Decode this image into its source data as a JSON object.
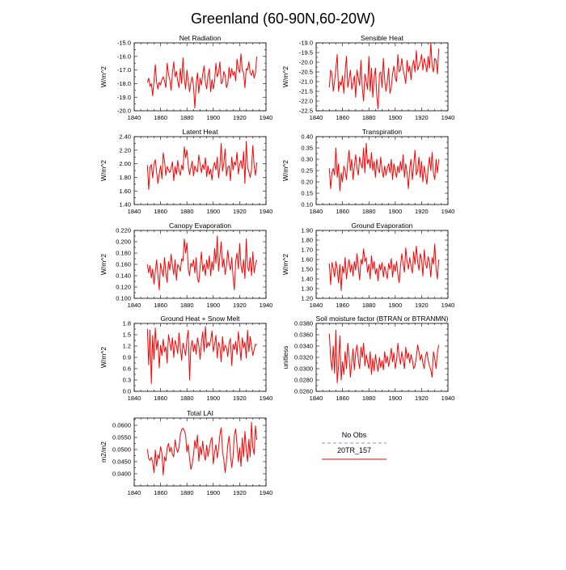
{
  "figure": {
    "title": "Greenland (60-90N,60-20W)"
  },
  "legend": {
    "items": [
      {
        "label": "No Obs",
        "color": "#8a8af0",
        "dashed": true
      },
      {
        "label": "20TR_157",
        "color": "#ff0000",
        "dashed": false
      }
    ]
  },
  "chart_data": [
    {
      "type": "line",
      "title": "Net Radiation",
      "xlabel": "",
      "ylabel": "W/m^2",
      "xlim": [
        1840,
        1940
      ],
      "ylim": [
        -20.0,
        -15.0
      ],
      "xticks": [
        1840,
        1860,
        1880,
        1900,
        1920,
        1940
      ],
      "yticks": [
        -20.0,
        -19.0,
        -18.0,
        -17.0,
        -16.0,
        -15.0
      ],
      "ytick_decimals": 1,
      "series": [
        {
          "color": "#ff0000",
          "x_start": 1850,
          "values": [
            -17.9,
            -17.6,
            -18.2,
            -18.0,
            -18.9,
            -17.8,
            -16.6,
            -17.9,
            -18.4,
            -17.9,
            -18.1,
            -17.7,
            -17.5,
            -17.8,
            -18.3,
            -16.5,
            -17.3,
            -17.7,
            -18.5,
            -17.2,
            -16.4,
            -17.5,
            -17.1,
            -17.8,
            -18.3,
            -16.9,
            -18.0,
            -16.1,
            -17.6,
            -18.4,
            -17.0,
            -17.8,
            -18.6,
            -17.9,
            -17.5,
            -18.2,
            -19.8,
            -18.0,
            -17.2,
            -18.7,
            -17.6,
            -18.1,
            -17.3,
            -16.7,
            -17.9,
            -18.4,
            -17.4,
            -16.9,
            -18.6,
            -17.7,
            -18.4,
            -17.8,
            -16.5,
            -17.5,
            -17.2,
            -16.4,
            -18.0,
            -17.9,
            -17.1,
            -17.4,
            -18.3,
            -18.0,
            -16.8,
            -17.6,
            -16.9,
            -17.4,
            -17.1,
            -17.8,
            -16.2,
            -16.9,
            -17.2,
            -15.8,
            -17.0,
            -17.2,
            -18.3,
            -16.9,
            -17.0,
            -16.4,
            -17.2,
            -17.4,
            -17.0,
            -17.6,
            -17.2,
            -16.0
          ]
        }
      ]
    },
    {
      "type": "line",
      "title": "Sensible Heat",
      "xlabel": "",
      "ylabel": "W/m^2",
      "xlim": [
        1840,
        1940
      ],
      "ylim": [
        -22.5,
        -19.0
      ],
      "xticks": [
        1840,
        1860,
        1880,
        1900,
        1920,
        1940
      ],
      "yticks": [
        -22.5,
        -22.0,
        -21.5,
        -21.0,
        -20.5,
        -20.0,
        -19.5,
        -19.0
      ],
      "ytick_decimals": 1,
      "series": [
        {
          "color": "#ff0000",
          "x_start": 1850,
          "values": [
            -21.3,
            -20.4,
            -20.6,
            -21.5,
            -21.0,
            -20.3,
            -19.6,
            -21.5,
            -21.0,
            -21.2,
            -20.7,
            -21.6,
            -20.5,
            -19.7,
            -21.3,
            -20.9,
            -20.4,
            -21.4,
            -21.1,
            -20.7,
            -21.8,
            -20.4,
            -20.8,
            -21.2,
            -19.9,
            -21.3,
            -22.0,
            -20.6,
            -21.0,
            -21.4,
            -19.7,
            -21.5,
            -20.3,
            -21.8,
            -20.8,
            -20.3,
            -21.7,
            -22.4,
            -20.6,
            -20.5,
            -21.3,
            -19.8,
            -20.9,
            -21.5,
            -21.0,
            -20.3,
            -21.6,
            -21.3,
            -20.6,
            -20.2,
            -20.8,
            -21.0,
            -19.6,
            -20.5,
            -20.4,
            -19.8,
            -20.4,
            -20.7,
            -21.1,
            -19.9,
            -20.5,
            -20.2,
            -20.9,
            -20.2,
            -19.9,
            -20.5,
            -19.4,
            -20.4,
            -20.2,
            -20.0,
            -19.6,
            -20.4,
            -19.8,
            -20.1,
            -20.5,
            -19.7,
            -20.3,
            -19.0,
            -20.2,
            -20.5,
            -19.8,
            -19.9,
            -20.6,
            -19.3
          ]
        }
      ]
    },
    {
      "type": "line",
      "title": "Latent Heat",
      "xlabel": "",
      "ylabel": "W/m^2",
      "xlim": [
        1840,
        1940
      ],
      "ylim": [
        1.4,
        2.4
      ],
      "xticks": [
        1840,
        1860,
        1880,
        1900,
        1920,
        1940
      ],
      "yticks": [
        1.4,
        1.6,
        1.8,
        2.0,
        2.2,
        2.4
      ],
      "ytick_decimals": 2,
      "series": [
        {
          "color": "#ff0000",
          "x_start": 1850,
          "values": [
            1.98,
            1.62,
            1.95,
            1.99,
            1.79,
            2.0,
            2.06,
            1.88,
            1.71,
            1.85,
            1.97,
            1.78,
            2.16,
            2.04,
            1.83,
            1.96,
            1.91,
            1.87,
            1.94,
            2.03,
            1.75,
            1.96,
            1.84,
            2.05,
            1.9,
            1.83,
            1.98,
            1.91,
            2.25,
            2.09,
            2.2,
            1.97,
            1.84,
            1.94,
            2.04,
            1.82,
            1.97,
            1.91,
            1.88,
            2.13,
            2.0,
            1.87,
            1.99,
            1.92,
            2.09,
            1.81,
            1.97,
            1.84,
            1.92,
            1.76,
            1.95,
            2.02,
            1.91,
            2.1,
            1.79,
            1.96,
            2.3,
            1.89,
            2.01,
            2.22,
            1.82,
            1.95,
            1.97,
            1.75,
            2.1,
            1.91,
            2.03,
            1.98,
            2.17,
            1.85,
            1.99,
            2.05,
            1.93,
            2.18,
            1.71,
            2.33,
            1.95,
            1.88,
            1.8,
            1.92,
            2.27,
            1.97,
            1.83,
            2.02
          ]
        }
      ]
    },
    {
      "type": "line",
      "title": "Transpiration",
      "xlabel": "",
      "ylabel": "W/m^2",
      "xlim": [
        1840,
        1940
      ],
      "ylim": [
        0.1,
        0.4
      ],
      "xticks": [
        1840,
        1860,
        1880,
        1900,
        1920,
        1940
      ],
      "yticks": [
        0.1,
        0.15,
        0.2,
        0.25,
        0.3,
        0.35,
        0.4
      ],
      "ytick_decimals": 2,
      "series": [
        {
          "color": "#ff0000",
          "x_start": 1850,
          "values": [
            0.26,
            0.17,
            0.24,
            0.26,
            0.23,
            0.35,
            0.22,
            0.28,
            0.16,
            0.24,
            0.2,
            0.27,
            0.25,
            0.21,
            0.29,
            0.34,
            0.25,
            0.3,
            0.21,
            0.27,
            0.32,
            0.26,
            0.23,
            0.31,
            0.28,
            0.26,
            0.35,
            0.24,
            0.37,
            0.28,
            0.3,
            0.26,
            0.33,
            0.25,
            0.29,
            0.22,
            0.3,
            0.26,
            0.24,
            0.31,
            0.25,
            0.22,
            0.27,
            0.23,
            0.26,
            0.28,
            0.24,
            0.3,
            0.21,
            0.28,
            0.25,
            0.22,
            0.27,
            0.24,
            0.29,
            0.25,
            0.32,
            0.22,
            0.28,
            0.24,
            0.17,
            0.26,
            0.3,
            0.21,
            0.27,
            0.34,
            0.23,
            0.25,
            0.31,
            0.22,
            0.29,
            0.2,
            0.27,
            0.23,
            0.19,
            0.26,
            0.31,
            0.25,
            0.33,
            0.24,
            0.21,
            0.3,
            0.24,
            0.3
          ]
        }
      ]
    },
    {
      "type": "line",
      "title": "Canopy Evaporation",
      "xlabel": "",
      "ylabel": "W/m^2",
      "xlim": [
        1840,
        1940
      ],
      "ylim": [
        0.1,
        0.22
      ],
      "xticks": [
        1840,
        1860,
        1880,
        1900,
        1920,
        1940
      ],
      "yticks": [
        0.1,
        0.12,
        0.14,
        0.16,
        0.18,
        0.2,
        0.22
      ],
      "ytick_decimals": 3,
      "series": [
        {
          "color": "#ff0000",
          "x_start": 1850,
          "values": [
            0.16,
            0.145,
            0.158,
            0.136,
            0.152,
            0.125,
            0.147,
            0.168,
            0.14,
            0.115,
            0.162,
            0.15,
            0.138,
            0.172,
            0.145,
            0.128,
            0.165,
            0.15,
            0.178,
            0.158,
            0.142,
            0.168,
            0.132,
            0.16,
            0.155,
            0.148,
            0.17,
            0.166,
            0.205,
            0.18,
            0.198,
            0.152,
            0.14,
            0.162,
            0.156,
            0.168,
            0.145,
            0.172,
            0.135,
            0.128,
            0.155,
            0.182,
            0.148,
            0.16,
            0.14,
            0.168,
            0.152,
            0.175,
            0.14,
            0.165,
            0.15,
            0.188,
            0.162,
            0.21,
            0.148,
            0.175,
            0.2,
            0.155,
            0.17,
            0.142,
            0.158,
            0.185,
            0.162,
            0.15,
            0.172,
            0.138,
            0.115,
            0.165,
            0.18,
            0.152,
            0.197,
            0.158,
            0.145,
            0.168,
            0.135,
            0.205,
            0.155,
            0.148,
            0.172,
            0.14,
            0.182,
            0.145,
            0.16,
            0.168
          ]
        }
      ]
    },
    {
      "type": "line",
      "title": "Ground Evaporation",
      "xlabel": "",
      "ylabel": "W/m^2",
      "xlim": [
        1840,
        1940
      ],
      "ylim": [
        1.2,
        1.9
      ],
      "xticks": [
        1840,
        1860,
        1880,
        1900,
        1920,
        1940
      ],
      "yticks": [
        1.2,
        1.3,
        1.4,
        1.5,
        1.6,
        1.7,
        1.8,
        1.9
      ],
      "ytick_decimals": 2,
      "series": [
        {
          "color": "#ff0000",
          "x_start": 1850,
          "values": [
            1.56,
            1.34,
            1.57,
            1.51,
            1.42,
            1.58,
            1.5,
            1.36,
            1.55,
            1.28,
            1.53,
            1.46,
            1.62,
            1.4,
            1.52,
            1.6,
            1.47,
            1.55,
            1.43,
            1.58,
            1.49,
            1.66,
            1.52,
            1.39,
            1.6,
            1.55,
            1.71,
            1.58,
            1.62,
            1.47,
            1.55,
            1.4,
            1.64,
            1.5,
            1.58,
            1.45,
            1.51,
            1.38,
            1.55,
            1.49,
            1.57,
            1.42,
            1.53,
            1.47,
            1.4,
            1.56,
            1.5,
            1.61,
            1.42,
            1.55,
            1.48,
            1.58,
            1.45,
            1.36,
            1.53,
            1.66,
            1.55,
            1.47,
            1.72,
            1.58,
            1.5,
            1.62,
            1.53,
            1.46,
            1.68,
            1.55,
            1.74,
            1.58,
            1.49,
            1.66,
            1.6,
            1.43,
            1.7,
            1.56,
            1.51,
            1.63,
            1.57,
            1.42,
            1.62,
            1.55,
            1.76,
            1.5,
            1.4,
            1.6
          ]
        }
      ]
    },
    {
      "type": "line",
      "title": "Ground Heat + Snow Melt",
      "xlabel": "",
      "ylabel": "W/m^2",
      "xlim": [
        1840,
        1940
      ],
      "ylim": [
        0.0,
        1.8
      ],
      "xticks": [
        1840,
        1860,
        1880,
        1900,
        1920,
        1940
      ],
      "yticks": [
        0.0,
        0.3,
        0.6,
        0.9,
        1.2,
        1.5,
        1.8
      ],
      "ytick_decimals": 1,
      "series": [
        {
          "color": "#ff0000",
          "x_start": 1850,
          "values": [
            1.65,
            0.7,
            1.62,
            0.2,
            1.48,
            0.85,
            1.68,
            1.1,
            1.35,
            0.62,
            1.22,
            0.95,
            1.38,
            1.05,
            1.18,
            0.75,
            1.5,
            1.28,
            1.08,
            1.42,
            0.9,
            1.35,
            1.22,
            1.0,
            1.55,
            1.15,
            0.82,
            1.28,
            1.12,
            0.95,
            1.38,
            1.62,
            0.3,
            1.18,
            1.35,
            1.05,
            1.25,
            0.98,
            1.42,
            1.22,
            0.85,
            1.3,
            1.58,
            1.05,
            1.72,
            1.15,
            1.3,
            1.2,
            1.35,
            1.6,
            1.05,
            1.25,
            1.48,
            0.88,
            1.3,
            1.18,
            0.78,
            1.45,
            1.05,
            1.22,
            1.15,
            0.92,
            1.28,
            1.4,
            0.68,
            1.25,
            1.1,
            1.32,
            0.98,
            1.58,
            1.22,
            0.82,
            1.42,
            1.15,
            1.3,
            0.88,
            1.62,
            1.05,
            1.45,
            1.2,
            0.95,
            1.1,
            1.25,
            1.22
          ]
        }
      ]
    },
    {
      "type": "line",
      "title": "Soil moisture factor (BTRAN or BTRANMN)",
      "xlabel": "",
      "ylabel": "unitless",
      "xlim": [
        1840,
        1940
      ],
      "ylim": [
        0.026,
        0.038
      ],
      "xticks": [
        1840,
        1860,
        1880,
        1900,
        1920,
        1940
      ],
      "yticks": [
        0.026,
        0.028,
        0.03,
        0.032,
        0.034,
        0.036,
        0.038
      ],
      "ytick_decimals": 4,
      "series": [
        {
          "color": "#ff0000",
          "x_start": 1850,
          "values": [
            0.0362,
            0.0318,
            0.0298,
            0.034,
            0.0292,
            0.0368,
            0.0275,
            0.0305,
            0.0358,
            0.028,
            0.0312,
            0.029,
            0.033,
            0.03,
            0.0345,
            0.0322,
            0.0285,
            0.031,
            0.0335,
            0.0298,
            0.0328,
            0.0342,
            0.0315,
            0.03,
            0.0338,
            0.032,
            0.0345,
            0.0305,
            0.0325,
            0.0312,
            0.03,
            0.033,
            0.029,
            0.0318,
            0.0296,
            0.0325,
            0.0308,
            0.0295,
            0.032,
            0.0302,
            0.0314,
            0.0298,
            0.033,
            0.031,
            0.0322,
            0.0304,
            0.0318,
            0.0336,
            0.0312,
            0.0328,
            0.03,
            0.0315,
            0.0345,
            0.0322,
            0.0308,
            0.033,
            0.0315,
            0.03,
            0.0338,
            0.0318,
            0.0328,
            0.031,
            0.0325,
            0.0315,
            0.03,
            0.0305,
            0.032,
            0.0342,
            0.033,
            0.0315,
            0.0325,
            0.031,
            0.03,
            0.0322,
            0.033,
            0.0315,
            0.0305,
            0.0298,
            0.0285,
            0.033,
            0.0318,
            0.03,
            0.0328,
            0.0342
          ]
        }
      ]
    },
    {
      "type": "line",
      "title": "Total LAI",
      "xlabel": "",
      "ylabel": "m2/m2",
      "xlim": [
        1840,
        1940
      ],
      "ylim": [
        0.035,
        0.063
      ],
      "xticks": [
        1840,
        1860,
        1880,
        1900,
        1920,
        1940
      ],
      "yticks": [
        0.04,
        0.045,
        0.05,
        0.055,
        0.06
      ],
      "ytick_decimals": 4,
      "series": [
        {
          "color": "#ff0000",
          "x_start": 1850,
          "values": [
            0.0502,
            0.0462,
            0.0455,
            0.0468,
            0.0448,
            0.0405,
            0.0498,
            0.0432,
            0.0478,
            0.0462,
            0.0512,
            0.0485,
            0.0395,
            0.047,
            0.0452,
            0.0508,
            0.0525,
            0.049,
            0.051,
            0.048,
            0.047,
            0.054,
            0.0505,
            0.0488,
            0.051,
            0.056,
            0.0582,
            0.0588,
            0.0578,
            0.056,
            0.049,
            0.052,
            0.0462,
            0.0418,
            0.044,
            0.0478,
            0.0538,
            0.0505,
            0.056,
            0.0452,
            0.0512,
            0.0478,
            0.0535,
            0.048,
            0.0455,
            0.0518,
            0.0472,
            0.0502,
            0.0535,
            0.055,
            0.044,
            0.0488,
            0.052,
            0.0465,
            0.0505,
            0.056,
            0.059,
            0.0492,
            0.0458,
            0.0405,
            0.045,
            0.052,
            0.0555,
            0.048,
            0.0425,
            0.047,
            0.056,
            0.0585,
            0.052,
            0.045,
            0.0508,
            0.043,
            0.0548,
            0.047,
            0.0575,
            0.05,
            0.045,
            0.0542,
            0.047,
            0.0612,
            0.0508,
            0.048,
            0.0598,
            0.054
          ]
        }
      ]
    }
  ]
}
